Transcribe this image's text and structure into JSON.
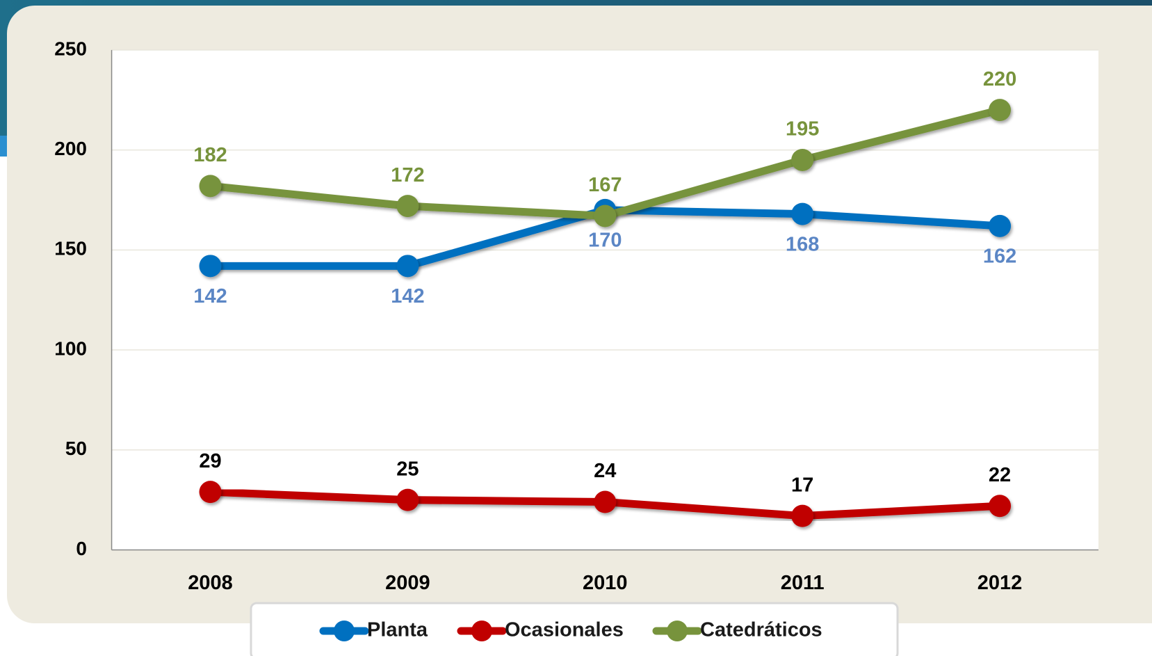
{
  "chart_data": {
    "type": "line",
    "categories": [
      "2008",
      "2009",
      "2010",
      "2011",
      "2012"
    ],
    "series": [
      {
        "name": "Planta",
        "color": "#0070c0",
        "label_color": "#5b86c5",
        "values": [
          142,
          142,
          170,
          168,
          162
        ]
      },
      {
        "name": "Ocasionales",
        "color": "#c00000",
        "label_color": "#000000",
        "values": [
          29,
          25,
          24,
          17,
          22
        ]
      },
      {
        "name": "Catedráticos",
        "color": "#77933c",
        "label_color": "#77933c",
        "values": [
          182,
          172,
          167,
          195,
          220
        ]
      }
    ],
    "ylim": [
      0,
      250
    ],
    "yticks": [
      0,
      50,
      100,
      150,
      200,
      250
    ],
    "grid": true,
    "legend": "bottom"
  }
}
